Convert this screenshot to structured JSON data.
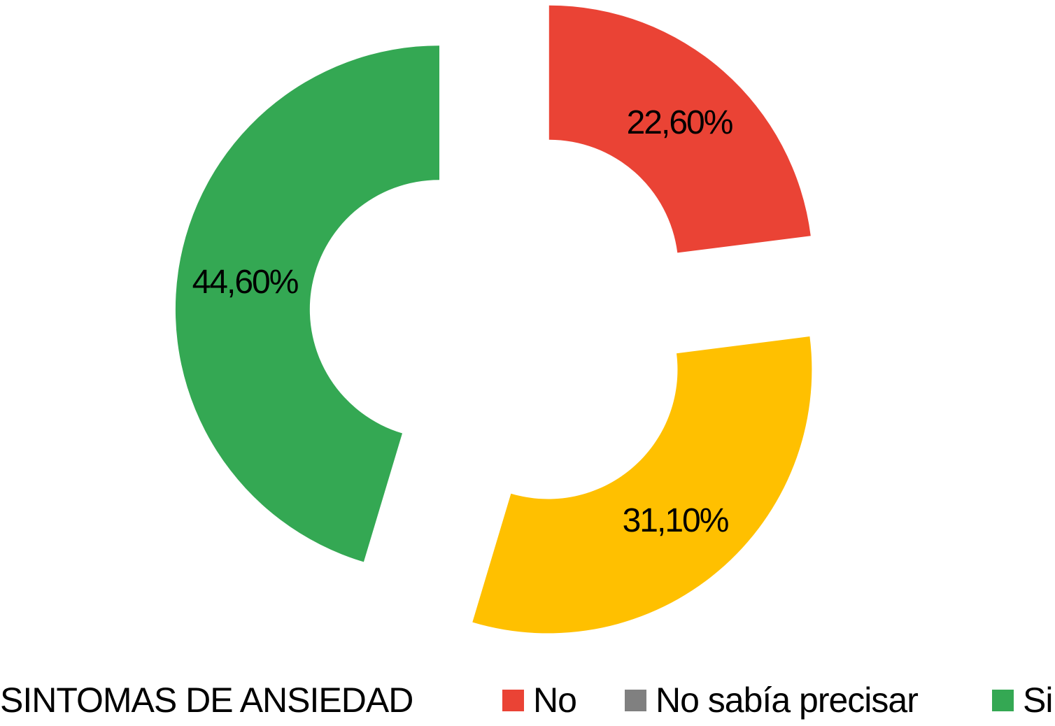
{
  "chart_data": {
    "type": "pie",
    "subtype": "exploded_donut",
    "title": "SINTOMAS DE ANSIEDAD",
    "slices": [
      {
        "legend_label": "No",
        "value": 22.6,
        "label": "22,60%",
        "color": "#EA4335"
      },
      {
        "legend_label": "",
        "value": 31.1,
        "label": "31,10%",
        "color": "#FFC000"
      },
      {
        "legend_label": "Si",
        "value": 44.6,
        "label": "44,60%",
        "color": "#34A853"
      }
    ],
    "legend": {
      "title": "SINTOMAS DE ANSIEDAD",
      "position": "bottom",
      "items": [
        {
          "label": "No",
          "color": "#EA4335"
        },
        {
          "label": "No sabía precisar",
          "color": "#808080"
        },
        {
          "label": "Si",
          "color": "#34A853"
        }
      ]
    },
    "layout_hints": {
      "start_angle_deg": 0,
      "clockwise": true,
      "hole_ratio": 0.49,
      "exploded": true,
      "grid": false,
      "label_position": "inside-mid-ring",
      "label_color": "#000000",
      "background": "#ffffff"
    }
  }
}
